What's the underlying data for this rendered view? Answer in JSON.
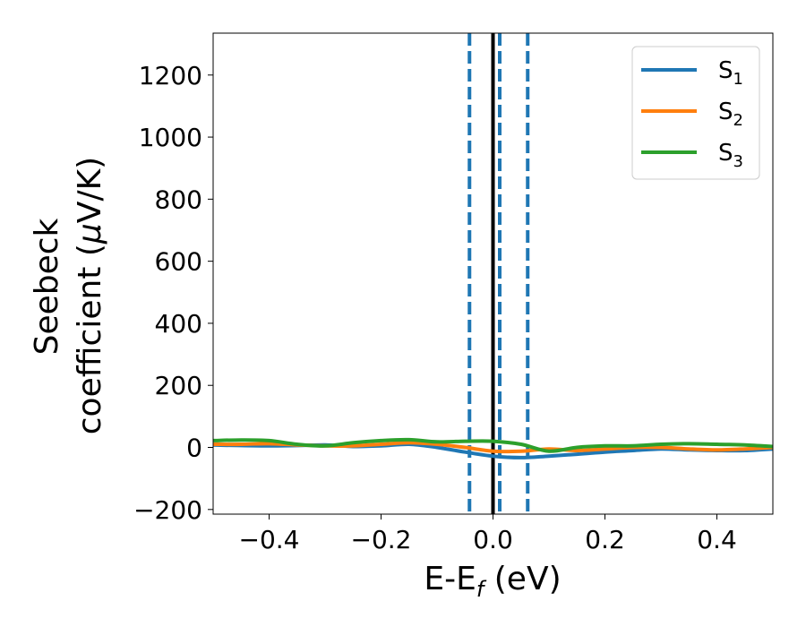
{
  "chart_data": {
    "type": "line",
    "xlabel": {
      "main": "E-E",
      "sub": "f",
      "unit": " (eV)"
    },
    "ylabel": {
      "line1": "Seebeck",
      "line2_prefix": "coefficient  (",
      "mu": "μ",
      "line2_suffix": "V/K)"
    },
    "xlim": [
      -0.5,
      0.5
    ],
    "ylim": [
      -215,
      1335
    ],
    "xticks": [
      -0.4,
      -0.2,
      0.0,
      0.2,
      0.4
    ],
    "xtick_labels": [
      "−0.4",
      "−0.2",
      "0.0",
      "0.2",
      "0.4"
    ],
    "yticks": [
      -200,
      0,
      200,
      400,
      600,
      800,
      1000,
      1200
    ],
    "ytick_labels": [
      "−200",
      "0",
      "200",
      "400",
      "600",
      "800",
      "1000",
      "1200"
    ],
    "grid": false,
    "legend_position": "top-right",
    "vertical_lines": [
      {
        "x": -0.042,
        "style": "dashed",
        "color": "#1f77b4"
      },
      {
        "x": 0.0,
        "style": "solid",
        "color": "#000000"
      },
      {
        "x": 0.012,
        "style": "dashed",
        "color": "#1f77b4"
      },
      {
        "x": 0.062,
        "style": "dashed",
        "color": "#1f77b4"
      }
    ],
    "x": [
      -0.5,
      -0.45,
      -0.4,
      -0.35,
      -0.3,
      -0.25,
      -0.2,
      -0.15,
      -0.1,
      -0.05,
      0.0,
      0.05,
      0.1,
      0.15,
      0.2,
      0.25,
      0.3,
      0.35,
      0.4,
      0.45,
      0.5
    ],
    "series": [
      {
        "name": "S",
        "sub": "1",
        "color": "#1f77b4",
        "values": [
          8,
          6,
          5,
          6,
          8,
          3,
          5,
          10,
          0,
          -15,
          -28,
          -33,
          -28,
          -22,
          -15,
          -10,
          -5,
          -8,
          -10,
          -10,
          -5
        ]
      },
      {
        "name": "S",
        "sub": "2",
        "color": "#ff7f0e",
        "values": [
          10,
          10,
          12,
          8,
          5,
          5,
          10,
          15,
          10,
          0,
          -12,
          -12,
          -5,
          -10,
          -5,
          0,
          0,
          -5,
          -8,
          -5,
          0
        ]
      },
      {
        "name": "S",
        "sub": "3",
        "color": "#2ca02c",
        "values": [
          22,
          24,
          22,
          10,
          5,
          15,
          22,
          25,
          18,
          20,
          20,
          10,
          -12,
          0,
          5,
          5,
          10,
          12,
          10,
          8,
          3
        ]
      }
    ]
  }
}
